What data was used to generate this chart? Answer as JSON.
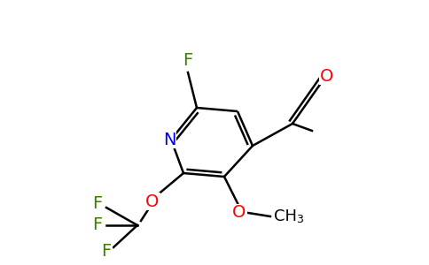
{
  "background_color": "#ffffff",
  "bond_color": "#000000",
  "atom_colors": {
    "F": "#3a7d00",
    "N": "#0000ee",
    "O": "#ff0000",
    "C": "#000000"
  }
}
